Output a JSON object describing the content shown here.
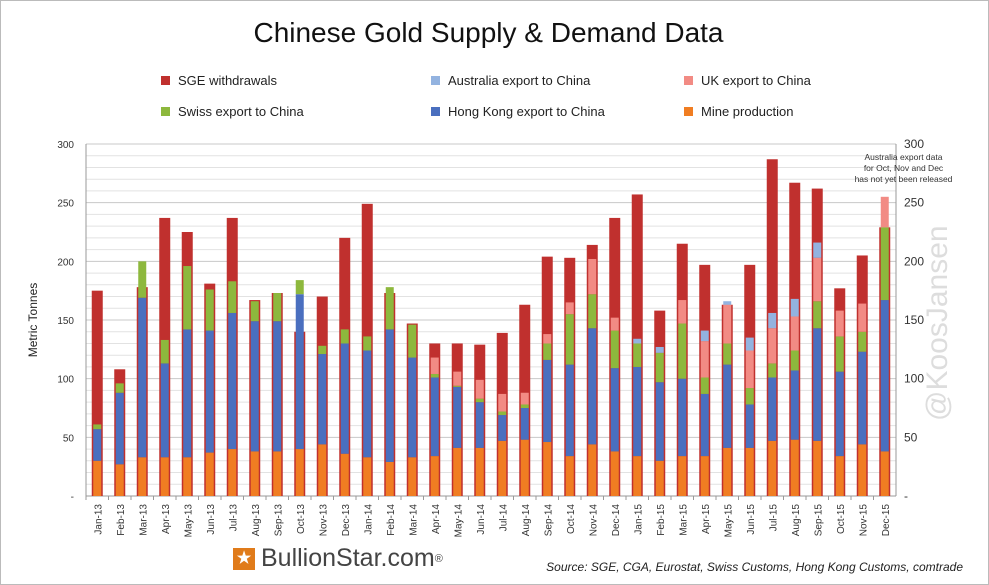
{
  "chart_data": {
    "type": "bar",
    "title": "Chinese Gold Supply & Demand Data",
    "ylabel": "Metric Tonnes",
    "ylim": [
      0,
      300
    ],
    "yticks": [
      "-",
      "50",
      "100",
      "150",
      "200",
      "250",
      "300"
    ],
    "grid": true,
    "legend_placement": "top",
    "categories": [
      "Jan-13",
      "Feb-13",
      "Mar-13",
      "Apr-13",
      "May-13",
      "Jun-13",
      "Jul-13",
      "Aug-13",
      "Sep-13",
      "Oct-13",
      "Nov-13",
      "Dec-13",
      "Jan-14",
      "Feb-14",
      "Mar-14",
      "Apr-14",
      "May-14",
      "Jun-14",
      "Jul-14",
      "Aug-14",
      "Sep-14",
      "Oct-14",
      "Nov-14",
      "Dec-14",
      "Jan-15",
      "Feb-15",
      "Mar-15",
      "Apr-15",
      "May-15",
      "Jun-15",
      "Jul-15",
      "Aug-15",
      "Sep-15",
      "Oct-15",
      "Nov-15",
      "Dec-15"
    ],
    "series": [
      {
        "name": "SGE withdrawals",
        "color": "#c0302e",
        "values": [
          175,
          108,
          178,
          237,
          225,
          181,
          237,
          167,
          173,
          140,
          170,
          220,
          249,
          173,
          147,
          130,
          130,
          129,
          139,
          163,
          204,
          203,
          214,
          237,
          257,
          158,
          215,
          197,
          163,
          197,
          287,
          267,
          262,
          177,
          205,
          229
        ]
      },
      {
        "name": "Mine production",
        "color": "#f07d22",
        "stacked": true,
        "values": [
          30,
          27,
          33,
          33,
          33,
          37,
          40,
          38,
          38,
          40,
          44,
          36,
          33,
          29,
          33,
          34,
          41,
          41,
          47,
          48,
          46,
          34,
          44,
          38,
          34,
          30,
          34,
          34,
          41,
          41,
          47,
          48,
          47,
          34,
          44,
          38
        ]
      },
      {
        "name": "Hong Kong export to China",
        "color": "#4a6fbf",
        "stacked": true,
        "values": [
          27,
          61,
          136,
          80,
          109,
          104,
          116,
          111,
          111,
          132,
          77,
          94,
          91,
          113,
          85,
          67,
          52,
          39,
          22,
          27,
          70,
          78,
          99,
          71,
          76,
          67,
          66,
          53,
          71,
          37,
          54,
          59,
          96,
          72,
          79,
          129
        ]
      },
      {
        "name": "Swiss export to China",
        "color": "#8db83d",
        "stacked": true,
        "values": [
          4,
          8,
          31,
          20,
          54,
          35,
          27,
          17,
          24,
          12,
          7,
          12,
          12,
          36,
          28,
          3,
          1,
          3,
          3,
          3,
          14,
          43,
          29,
          32,
          20,
          25,
          47,
          14,
          18,
          14,
          12,
          17,
          23,
          30,
          17,
          62
        ]
      },
      {
        "name": "UK export to China",
        "color": "#f28b84",
        "stacked": true,
        "values": [
          0,
          0,
          0,
          0,
          0,
          0,
          0,
          0,
          0,
          0,
          0,
          0,
          0,
          0,
          0,
          14,
          12,
          16,
          15,
          10,
          8,
          10,
          30,
          11,
          0,
          0,
          20,
          31,
          33,
          32,
          30,
          29,
          37,
          22,
          24,
          26
        ]
      },
      {
        "name": "Australia export to China",
        "color": "#93b3e0",
        "stacked": true,
        "values": [
          0,
          0,
          0,
          0,
          0,
          0,
          0,
          0,
          0,
          0,
          0,
          0,
          0,
          0,
          0,
          0,
          0,
          0,
          0,
          0,
          0,
          0,
          0,
          0,
          4,
          5,
          0,
          9,
          3,
          11,
          13,
          15,
          13,
          0,
          0,
          0
        ]
      }
    ],
    "annotation": [
      "Australia export data",
      "for Oct, Nov and Dec",
      "has not yet been released"
    ]
  },
  "legend": [
    "SGE withdrawals",
    "Australia export to China",
    "UK export to China",
    "Swiss export to China",
    "Hong Kong export to China",
    "Mine production"
  ],
  "legend_colors": [
    "#c0302e",
    "#93b3e0",
    "#f28b84",
    "#8db83d",
    "#4a6fbf",
    "#f07d22"
  ],
  "watermark": "@KoosJansen",
  "logo": {
    "text": "BullionStar.com",
    "mark": "®"
  },
  "source": "Source: SGE, CGA, Eurostat, Swiss Customs, Hong Kong Customs, comtrade"
}
